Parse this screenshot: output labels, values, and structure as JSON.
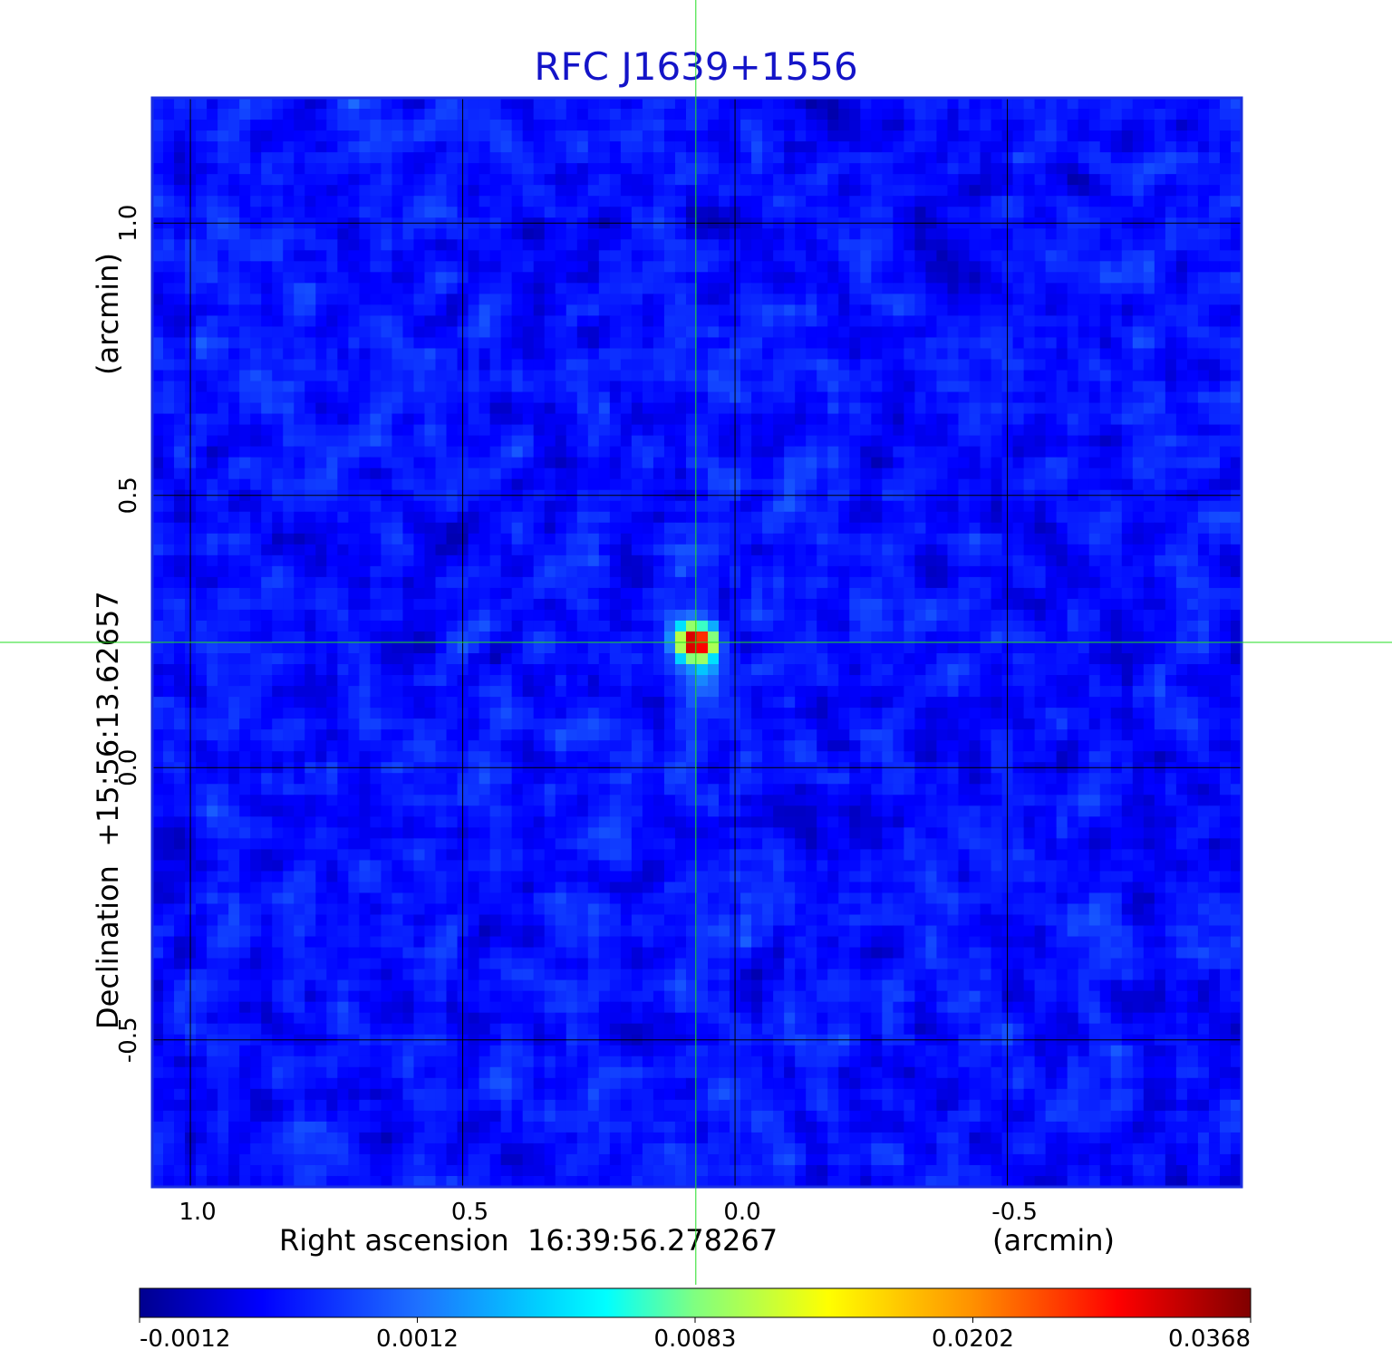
{
  "chart_data": {
    "type": "heatmap",
    "title": "RFC J1639+1556",
    "xlabel": "Right ascension  16:39:56.278267",
    "xunit": "(arcmin)",
    "ylabel": "Declination  +15:56:13.62657",
    "yunit": "(arcmin)",
    "xlim": [
      1.07,
      -0.93
    ],
    "ylim": [
      -0.77,
      1.23
    ],
    "x_ticks": [
      1.0,
      0.5,
      0.0,
      -0.5
    ],
    "x_tick_labels": [
      "1.0",
      "0.5",
      "0.0",
      "-0.5"
    ],
    "y_ticks": [
      1.0,
      0.5,
      0.0,
      -0.5
    ],
    "y_tick_labels": [
      "1.0",
      "0.5",
      "0.0",
      "-0.5"
    ],
    "grid": true,
    "crosshair": {
      "x": 0.072,
      "y": 0.23,
      "color": "#22dd22"
    },
    "source_peak": {
      "x": 0.072,
      "y": 0.23,
      "value": 0.0368
    },
    "colormap": "jet",
    "colorbar": {
      "position": "bottom",
      "tick_labels": [
        "-0.0012",
        "0.0012",
        "0.0083",
        "0.0202",
        "0.0368"
      ],
      "values": [
        -0.0012,
        0.0012,
        0.0083,
        0.0202,
        0.0368
      ]
    },
    "colors": {
      "title": "#1414c8",
      "frame": "#1a2ee0",
      "grid": "#000000",
      "crosshair": "#22dd22"
    }
  }
}
